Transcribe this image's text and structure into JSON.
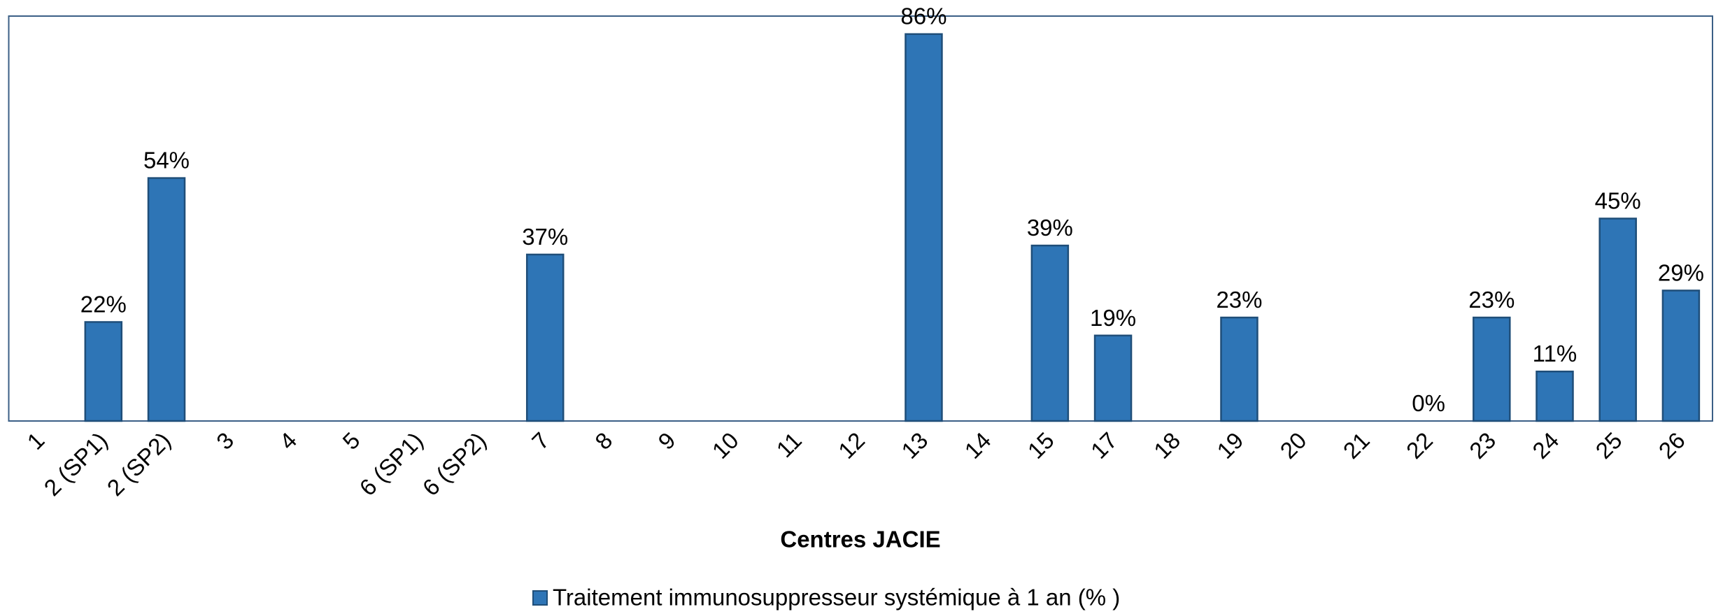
{
  "chart_data": {
    "type": "bar",
    "x_label": "Centres JACIE",
    "categories": [
      "1",
      "2 (SP1)",
      "2 (SP2)",
      "3",
      "4",
      "5",
      "6 (SP1)",
      "6 (SP2)",
      "7",
      "8",
      "9",
      "10",
      "11",
      "12",
      "13",
      "14",
      "15",
      "17",
      "18",
      "19",
      "20",
      "21",
      "22",
      "23",
      "24",
      "25",
      "26"
    ],
    "series": [
      {
        "name": "Traitement immunosuppresseur systémique à 1 an (% )",
        "color": "#2e75b6",
        "values": [
          null,
          22,
          54,
          null,
          null,
          null,
          null,
          null,
          37,
          null,
          null,
          null,
          null,
          null,
          86,
          null,
          39,
          19,
          null,
          23,
          null,
          null,
          0,
          23,
          11,
          45,
          29
        ],
        "value_labels": [
          null,
          "22%",
          "54%",
          null,
          null,
          null,
          null,
          null,
          "37%",
          null,
          null,
          null,
          null,
          null,
          "86%",
          null,
          "39%",
          "19%",
          null,
          "23%",
          null,
          null,
          "0%",
          "23%",
          "11%",
          "45%",
          "29%"
        ]
      }
    ],
    "ylim": [
      0,
      90
    ],
    "legend": "bottom"
  }
}
